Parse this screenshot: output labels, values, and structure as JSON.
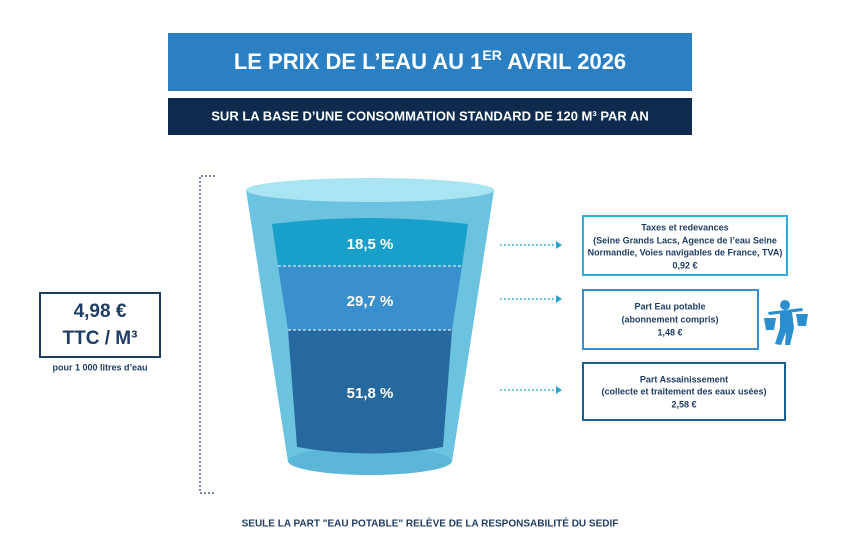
{
  "header": {
    "title_before": "LE PRIX DE L’EAU AU 1",
    "title_sup": "ER",
    "title_after": " AVRIL 2026",
    "subtitle": "SUR LA BASE D’UNE CONSOMMATION STANDARD DE 120 M³ PAR AN"
  },
  "price": {
    "amount": "4,98 €",
    "unit": "TTC / M³",
    "note": "pour 1 000 litres d’eau"
  },
  "glass": {
    "segments": [
      "18,5 %",
      "29,7 %",
      "51,8 %"
    ]
  },
  "boxes": [
    {
      "title": "Taxes et redevances",
      "lines": [
        "(Seine Grands Lacs, Agence de l’eau Seine",
        "Normandie, Voies navigables de France, TVA)"
      ],
      "amount": "0,92 €"
    },
    {
      "title": "Part Eau potable",
      "lines": [
        "(abonnement compris)"
      ],
      "amount": "1,48 €"
    },
    {
      "title": "Part Assainissement",
      "lines": [
        "(collecte et traitement des eaux usées)"
      ],
      "amount": "2,58 €"
    }
  ],
  "footer": "SEULE LA PART \"EAU POTABLE\" RELÈVE DE LA RESPONSABILITÉ DU SEDIF"
}
